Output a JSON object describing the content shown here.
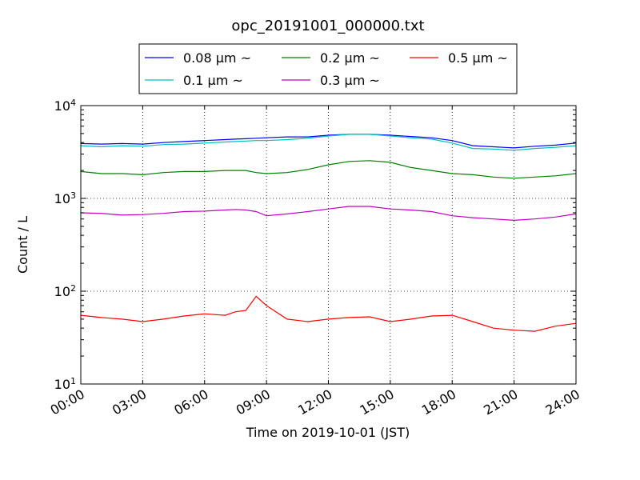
{
  "chart_data": {
    "type": "line",
    "title": "opc_20191001_000000.txt",
    "xlabel": "Time on 2019-10-01 (JST)",
    "ylabel": "Count / L",
    "x_unit": "hour",
    "xlim": [
      0,
      24
    ],
    "ylim": [
      10,
      10000
    ],
    "yscale": "log",
    "grid": true,
    "legend_position": "top",
    "x_tick_labels": [
      "00:00",
      "03:00",
      "06:00",
      "09:00",
      "12:00",
      "15:00",
      "18:00",
      "21:00",
      "24:00"
    ],
    "y_tick_labels": [
      {
        "base": "10",
        "exp": "1"
      },
      {
        "base": "10",
        "exp": "2"
      },
      {
        "base": "10",
        "exp": "3"
      },
      {
        "base": "10",
        "exp": "4"
      }
    ],
    "x": [
      0,
      1,
      2,
      3,
      4,
      5,
      6,
      7,
      7.5,
      8,
      8.5,
      9,
      10,
      11,
      12,
      13,
      14,
      15,
      16,
      17,
      18,
      19,
      20,
      21,
      22,
      23,
      24
    ],
    "series": [
      {
        "name": "0.08 μm ~",
        "color": "#0000ff",
        "values": [
          3900,
          3850,
          3900,
          3850,
          4000,
          4100,
          4200,
          4300,
          4350,
          4400,
          4450,
          4500,
          4600,
          4600,
          4800,
          4900,
          4900,
          4800,
          4650,
          4500,
          4200,
          3700,
          3600,
          3500,
          3650,
          3750,
          3950
        ]
      },
      {
        "name": "0.1 μm ~",
        "color": "#00bfbf",
        "values": [
          3700,
          3600,
          3700,
          3650,
          3800,
          3850,
          3950,
          4050,
          4100,
          4150,
          4200,
          4200,
          4300,
          4450,
          4700,
          4900,
          4900,
          4700,
          4500,
          4350,
          3950,
          3450,
          3400,
          3300,
          3450,
          3550,
          3700
        ]
      },
      {
        "name": "0.2 μm ~",
        "color": "#008000",
        "values": [
          1950,
          1850,
          1850,
          1800,
          1900,
          1950,
          1950,
          2000,
          2000,
          2000,
          1900,
          1850,
          1900,
          2050,
          2300,
          2500,
          2550,
          2450,
          2150,
          2000,
          1850,
          1800,
          1700,
          1650,
          1700,
          1750,
          1850
        ]
      },
      {
        "name": "0.3 μm ~",
        "color": "#bf00bf",
        "values": [
          700,
          690,
          660,
          670,
          690,
          720,
          730,
          750,
          760,
          750,
          720,
          650,
          680,
          720,
          770,
          820,
          820,
          770,
          750,
          720,
          650,
          620,
          600,
          580,
          600,
          630,
          680
        ]
      },
      {
        "name": "0.5 μm ~",
        "color": "#ff0000",
        "values": [
          55,
          52,
          50,
          47,
          50,
          54,
          57,
          55,
          60,
          62,
          88,
          70,
          50,
          47,
          50,
          52,
          53,
          47,
          50,
          54,
          55,
          47,
          40,
          38,
          37,
          42,
          45
        ]
      }
    ]
  }
}
